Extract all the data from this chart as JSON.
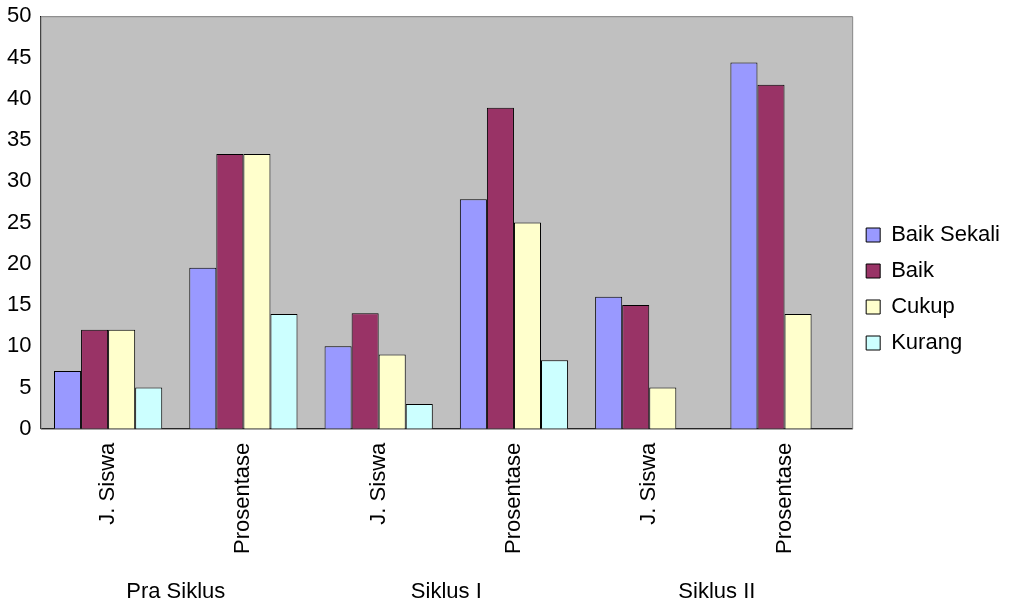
{
  "chart_data": {
    "type": "bar",
    "categories": [
      "J. Siswa",
      "Prosentase",
      "J. Siswa",
      "Prosentase",
      "J. Siswa",
      "Prosentase"
    ],
    "series": [
      {
        "name": "Baik Sekali",
        "color": "#9999ff",
        "values": [
          7,
          19.5,
          10,
          27.8,
          16,
          44.4
        ]
      },
      {
        "name": "Baik",
        "color": "#993366",
        "values": [
          12,
          33.3,
          14,
          38.9,
          15,
          41.7
        ]
      },
      {
        "name": "Cukup",
        "color": "#ffffcc",
        "values": [
          12,
          33.3,
          9,
          25,
          5,
          13.9
        ]
      },
      {
        "name": "Kurang",
        "color": "#ccffff",
        "values": [
          5,
          13.9,
          3,
          8.3,
          null,
          null
        ]
      }
    ],
    "ylim": [
      0,
      50
    ],
    "yticks": [
      0,
      5,
      10,
      15,
      20,
      25,
      30,
      35,
      40,
      45,
      50
    ],
    "grid": false,
    "legend": "right",
    "annotations": [
      "Pra Siklus",
      "Siklus I",
      "Siklus II"
    ]
  }
}
